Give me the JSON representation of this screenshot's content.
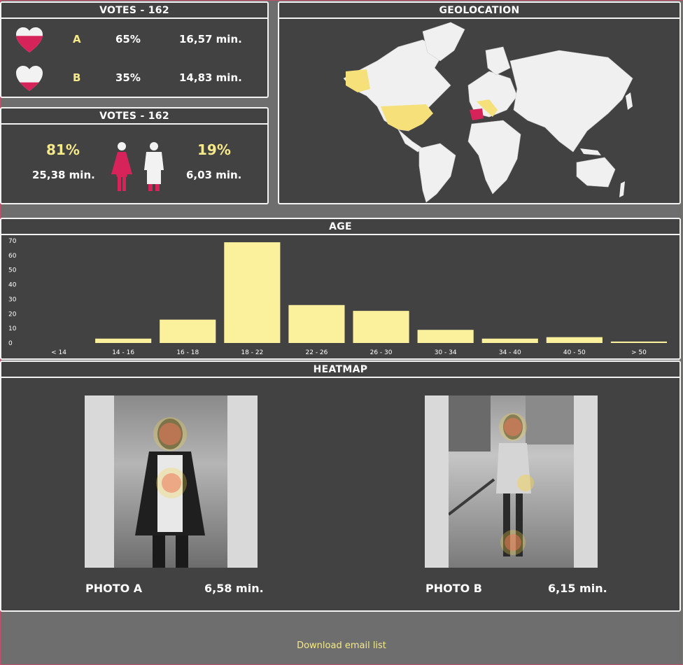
{
  "votes_panel": {
    "title": "VOTES - 162",
    "rows": [
      {
        "label": "A",
        "percent": "65%",
        "time": "16,57 min.",
        "fill_fraction": 0.65
      },
      {
        "label": "B",
        "percent": "35%",
        "time": "14,83 min.",
        "fill_fraction": 0.35
      }
    ]
  },
  "gender_panel": {
    "title": "VOTES - 162",
    "female": {
      "percent": "81%",
      "time": "25,38 min."
    },
    "male": {
      "percent": "19%",
      "time": "6,03 min."
    }
  },
  "geo_panel": {
    "title": "GEOLOCATION"
  },
  "age_panel": {
    "title": "AGE"
  },
  "chart_data": {
    "type": "bar",
    "title": "AGE",
    "categories": [
      "< 14",
      "14 - 16",
      "16 - 18",
      "18 - 22",
      "22 - 26",
      "26 - 30",
      "30 - 34",
      "34 - 40",
      "40 - 50",
      "> 50"
    ],
    "values": [
      0,
      3,
      16,
      69,
      26,
      22,
      9,
      3,
      4,
      1
    ],
    "ylim": [
      0,
      70
    ],
    "yticks": [
      0,
      10,
      20,
      30,
      40,
      50,
      60,
      70
    ],
    "grid": false,
    "bar_color": "#fbf19c"
  },
  "heatmap_panel": {
    "title": "HEATMAP",
    "photos": [
      {
        "label": "PHOTO A",
        "time": "6,58 min."
      },
      {
        "label": "PHOTO B",
        "time": "6,15 min."
      }
    ]
  },
  "footer": {
    "download_label": "Download email list"
  },
  "colors": {
    "accent_pink": "#d6245a",
    "accent_yellow": "#f5e98a",
    "panel_bg": "#424242",
    "page_bg": "#6e6e6e"
  }
}
